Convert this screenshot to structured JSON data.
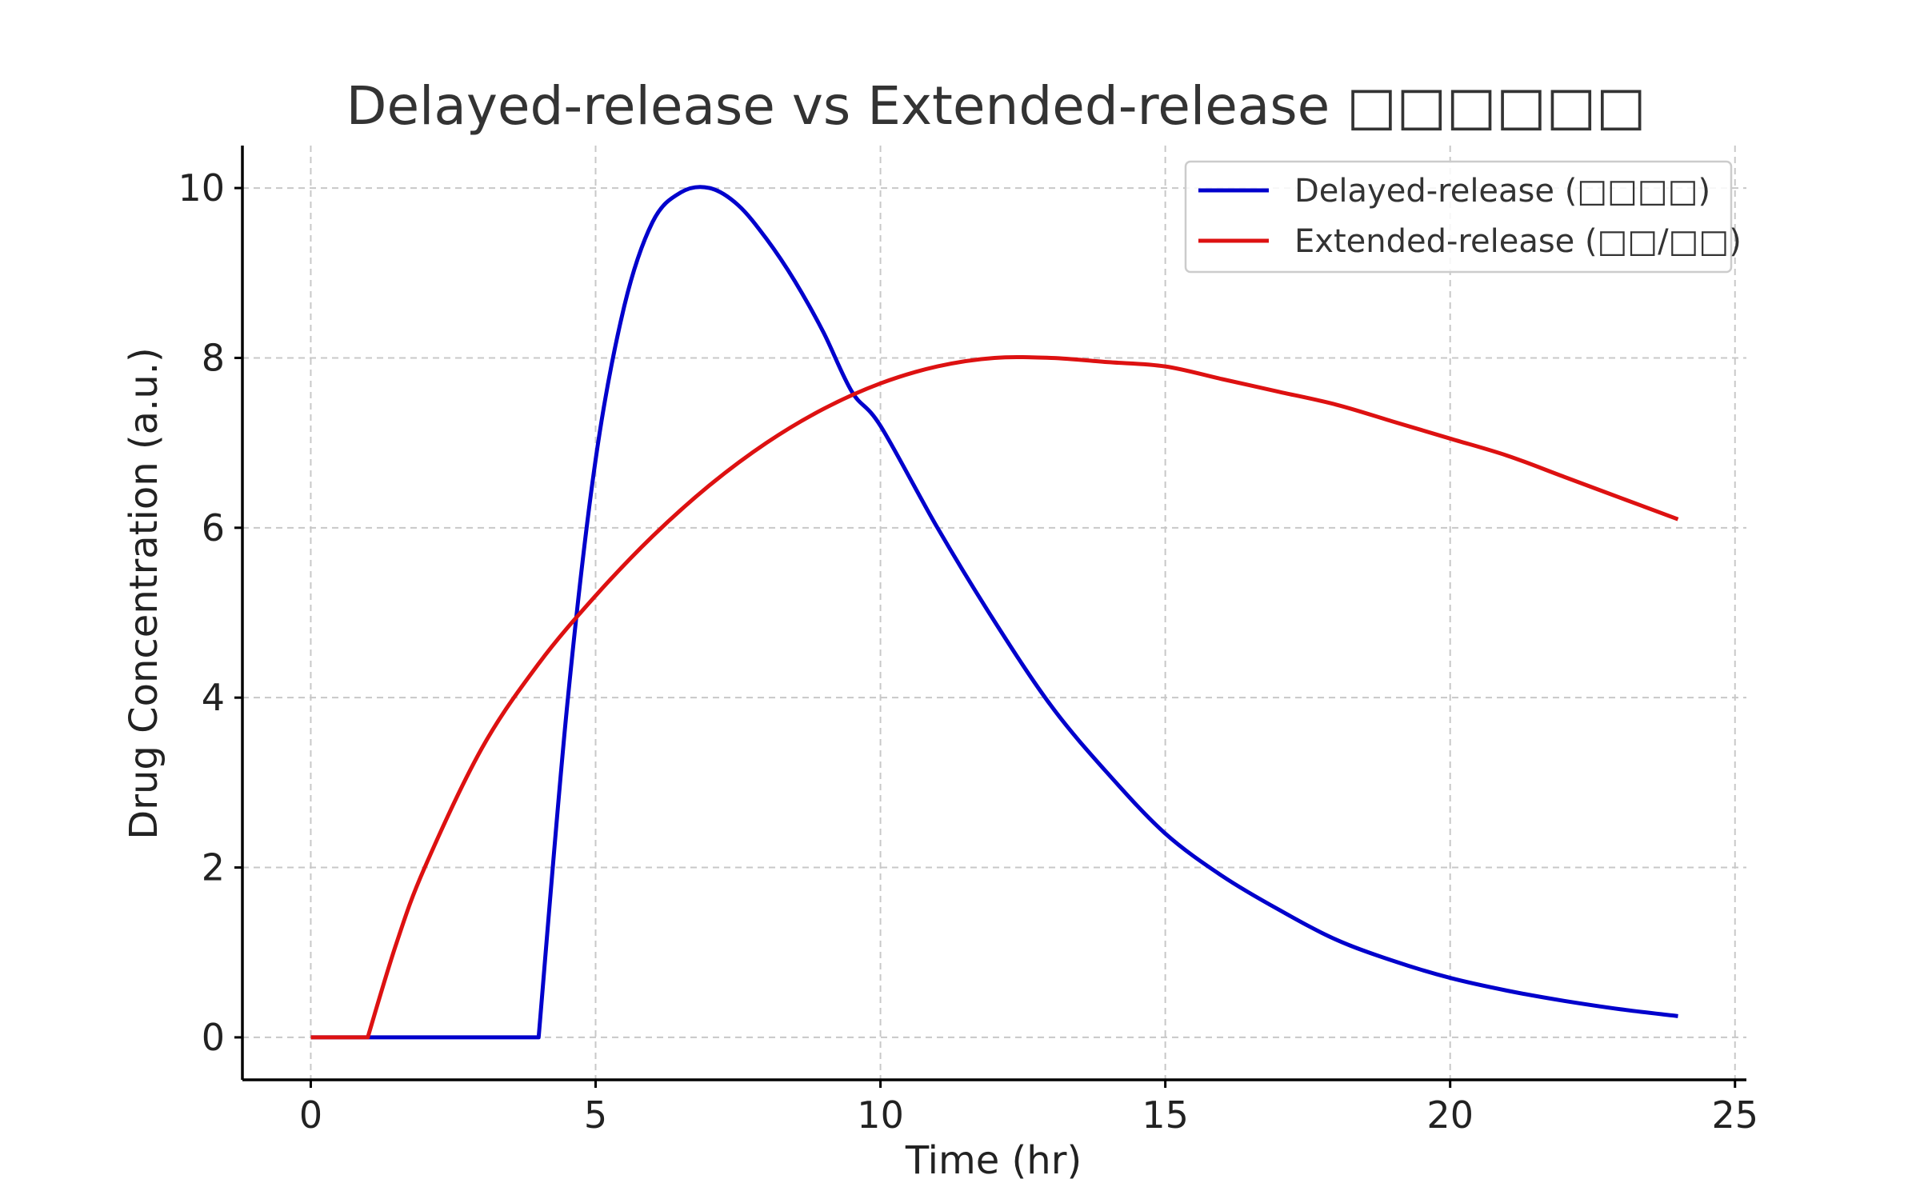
{
  "chart_data": {
    "type": "line",
    "title": "Delayed-release vs Extended-release □□□□□□",
    "xlabel": "Time (hr)",
    "ylabel": "Drug Concentration (a.u.)",
    "xlim": [
      -1.2,
      25.2
    ],
    "ylim": [
      -0.5,
      10.5
    ],
    "xticks": [
      0,
      5,
      10,
      15,
      20,
      25
    ],
    "yticks": [
      0,
      2,
      4,
      6,
      8,
      10
    ],
    "grid": true,
    "legend_position": "top-right",
    "series": [
      {
        "name": "Delayed-release (□□□□)",
        "color": "#0000cc",
        "x": [
          0,
          1,
          2,
          3,
          4,
          4.5,
          5,
          5.5,
          6,
          6.5,
          7,
          7.5,
          8,
          8.5,
          9,
          9.5,
          10,
          11,
          12,
          13,
          14,
          15,
          16,
          17,
          18,
          19,
          20,
          21,
          22,
          23,
          24
        ],
        "y": [
          0,
          0,
          0,
          0,
          0,
          3.9,
          6.8,
          8.6,
          9.6,
          9.95,
          10.0,
          9.8,
          9.4,
          8.9,
          8.3,
          7.6,
          7.2,
          6.0,
          4.9,
          3.9,
          3.1,
          2.4,
          1.9,
          1.5,
          1.15,
          0.9,
          0.7,
          0.55,
          0.43,
          0.33,
          0.25
        ]
      },
      {
        "name": "Extended-release (□□/□□)",
        "color": "#dd1111",
        "x": [
          0,
          1,
          1.5,
          2,
          3,
          4,
          5,
          6,
          7,
          8,
          9,
          10,
          11,
          12,
          13,
          14,
          15,
          16,
          17,
          18,
          19,
          20,
          21,
          22,
          23,
          24
        ],
        "y": [
          0,
          0,
          1.1,
          2.0,
          3.4,
          4.4,
          5.2,
          5.9,
          6.5,
          7.0,
          7.4,
          7.7,
          7.9,
          8.0,
          8.0,
          7.95,
          7.9,
          7.75,
          7.6,
          7.45,
          7.25,
          7.05,
          6.85,
          6.6,
          6.35,
          6.1
        ]
      }
    ]
  }
}
